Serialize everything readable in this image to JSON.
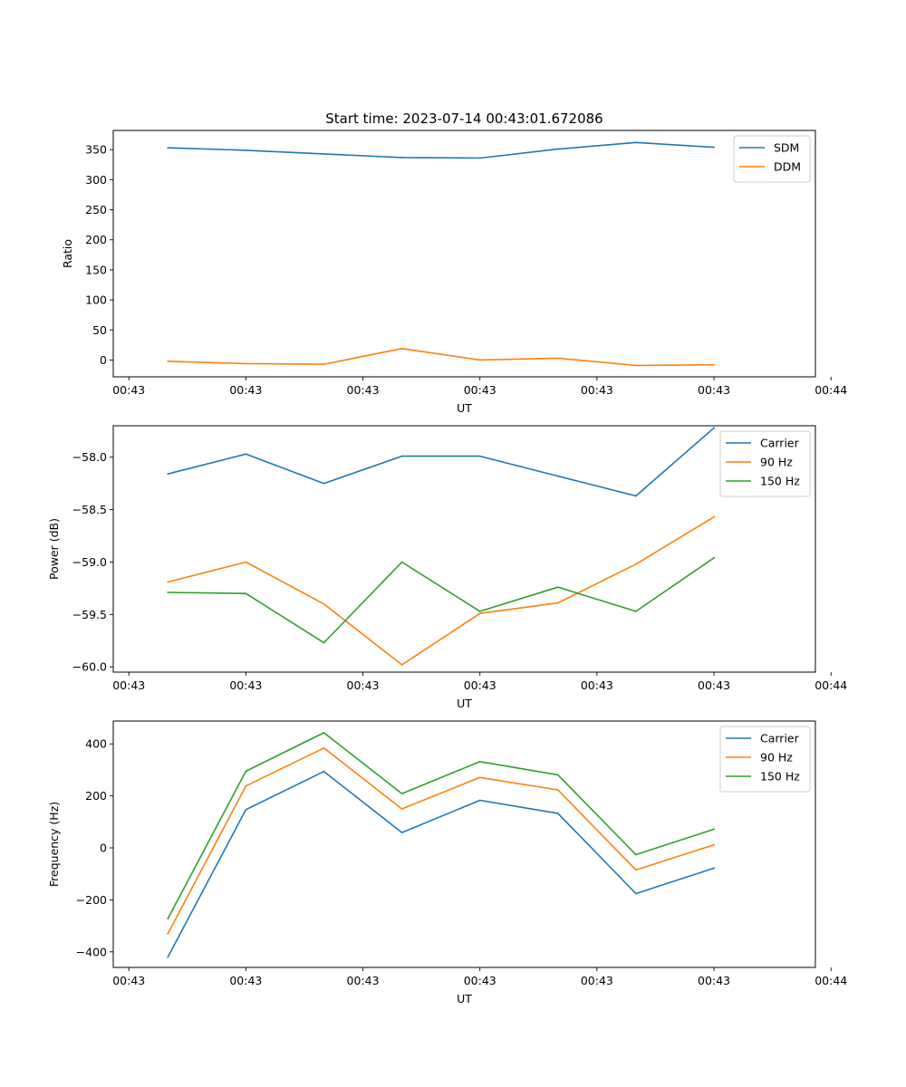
{
  "chart_data": [
    {
      "type": "line",
      "title": "Start time: 2023-07-14 00:43:01.672086",
      "xlabel": "UT",
      "ylabel": "Ratio",
      "x": [
        1,
        2,
        3,
        4,
        5,
        6,
        7,
        8
      ],
      "xlim": [
        0.3,
        9.3
      ],
      "xticks": [
        0.5,
        2,
        3.5,
        5,
        6.5,
        8,
        9.5
      ],
      "xtick_labels": [
        "00:43",
        "00:43",
        "00:43",
        "00:43",
        "00:43",
        "00:43",
        "00:44"
      ],
      "ylim": [
        -28,
        382
      ],
      "yticks": [
        0,
        50,
        100,
        150,
        200,
        250,
        300,
        350
      ],
      "ytick_labels": [
        "0",
        "50",
        "100",
        "150",
        "200",
        "250",
        "300",
        "350"
      ],
      "legend_position": "upper-right",
      "series": [
        {
          "name": "SDM",
          "color": "#1f77b4",
          "values": [
            353,
            349,
            343,
            337,
            336,
            351,
            362,
            354
          ]
        },
        {
          "name": "DDM",
          "color": "#ff7f0e",
          "values": [
            -2,
            -6,
            -7,
            19,
            0,
            3,
            -9,
            -8
          ]
        }
      ]
    },
    {
      "type": "line",
      "title": "",
      "xlabel": "UT",
      "ylabel": "Power (dB)",
      "x": [
        1,
        2,
        3,
        4,
        5,
        6,
        7,
        8
      ],
      "xlim": [
        0.3,
        9.3
      ],
      "xticks": [
        0.5,
        2,
        3.5,
        5,
        6.5,
        8,
        9.5
      ],
      "xtick_labels": [
        "00:43",
        "00:43",
        "00:43",
        "00:43",
        "00:43",
        "00:43",
        "00:44"
      ],
      "ylim": [
        -60.05,
        -57.7
      ],
      "yticks": [
        -60.0,
        -59.5,
        -59.0,
        -58.5,
        -58.0
      ],
      "ytick_labels": [
        "−60.0",
        "−59.5",
        "−59.0",
        "−58.5",
        "−58.0"
      ],
      "legend_position": "upper-right",
      "series": [
        {
          "name": "Carrier",
          "color": "#1f77b4",
          "values": [
            -58.16,
            -57.97,
            -58.25,
            -57.99,
            -57.99,
            -58.18,
            -58.37,
            -57.72
          ]
        },
        {
          "name": "90 Hz",
          "color": "#ff7f0e",
          "values": [
            -59.19,
            -59.0,
            -59.4,
            -59.98,
            -59.49,
            -59.39,
            -59.02,
            -58.57
          ]
        },
        {
          "name": "150 Hz",
          "color": "#2ca02c",
          "values": [
            -59.29,
            -59.3,
            -59.77,
            -59.0,
            -59.47,
            -59.24,
            -59.47,
            -58.96
          ]
        }
      ]
    },
    {
      "type": "line",
      "title": "",
      "xlabel": "UT",
      "ylabel": "Frequency (Hz)",
      "x": [
        1,
        2,
        3,
        4,
        5,
        6,
        7,
        8
      ],
      "xlim": [
        0.3,
        9.3
      ],
      "xticks": [
        0.5,
        2,
        3.5,
        5,
        6.5,
        8,
        9.5
      ],
      "xtick_labels": [
        "00:43",
        "00:43",
        "00:43",
        "00:43",
        "00:43",
        "00:43",
        "00:44"
      ],
      "ylim": [
        -460,
        488
      ],
      "yticks": [
        -400,
        -200,
        0,
        200,
        400
      ],
      "ytick_labels": [
        "−400",
        "−200",
        "0",
        "200",
        "400"
      ],
      "legend_position": "upper-right",
      "series": [
        {
          "name": "Carrier",
          "color": "#1f77b4",
          "values": [
            -420,
            147,
            294,
            59,
            183,
            133,
            -176,
            -78
          ]
        },
        {
          "name": "90 Hz",
          "color": "#ff7f0e",
          "values": [
            -330,
            238,
            384,
            150,
            271,
            223,
            -85,
            12
          ]
        },
        {
          "name": "150 Hz",
          "color": "#2ca02c",
          "values": [
            -272,
            295,
            443,
            209,
            332,
            281,
            -26,
            72
          ]
        }
      ]
    }
  ]
}
